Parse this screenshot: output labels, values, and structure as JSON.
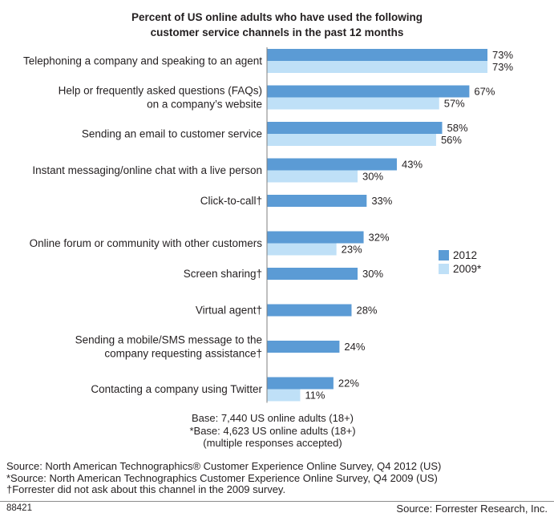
{
  "chart_data": {
    "type": "bar",
    "orientation": "horizontal",
    "title_lines": [
      "Percent of US online adults who have used the following",
      "customer service channels in the past 12 months"
    ],
    "categories": [
      [
        "Telephoning a company and speaking to an agent"
      ],
      [
        "Help or frequently asked questions (FAQs)",
        "on a company’s website"
      ],
      [
        "Sending an email to customer service"
      ],
      [
        "Instant messaging/online chat with a live person"
      ],
      [
        "Click-to-call†"
      ],
      [
        "Online forum or community with other customers"
      ],
      [
        "Screen sharing†"
      ],
      [
        "Virtual agent†"
      ],
      [
        "Sending a mobile/SMS message to the",
        "company requesting assistance†"
      ],
      [
        "Contacting a company using Twitter"
      ]
    ],
    "series": [
      {
        "name": "2012",
        "color": "#5b9bd5",
        "values": [
          73,
          67,
          58,
          43,
          33,
          32,
          30,
          28,
          24,
          22
        ]
      },
      {
        "name": "2009*",
        "color": "#bfe0f7",
        "values": [
          73,
          57,
          56,
          30,
          null,
          23,
          null,
          null,
          null,
          11
        ]
      }
    ],
    "value_suffix": "%",
    "xlim": [
      0,
      100
    ],
    "legend_position": "right",
    "grid": false
  },
  "base_note": [
    "Base: 7,440 US online adults (18+)",
    "*Base: 4,623 US online adults (18+)",
    "(multiple responses accepted)"
  ],
  "sources": [
    "Source: North American Technographics® Customer Experience Online Survey, Q4 2012 (US)",
    "*Source: North American Technographics Customer Experience Online Survey, Q4 2009 (US)",
    "†Forrester did not ask about this channel in the 2009 survey."
  ],
  "footer": {
    "id": "88421",
    "source": "Source: Forrester Research, Inc."
  }
}
